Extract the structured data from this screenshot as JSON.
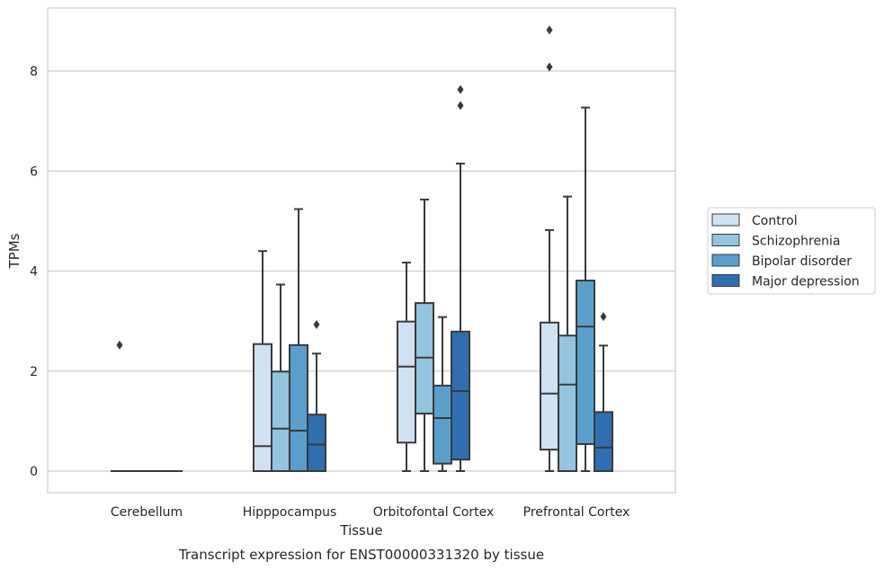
{
  "caption": "Transcript expression for ENST00000331320 by tissue",
  "chart_data": {
    "type": "box",
    "title": "",
    "xlabel": "Tissue",
    "ylabel": "TPMs",
    "ylim": [
      -0.42,
      9.25
    ],
    "yticks": [
      0,
      2,
      4,
      6,
      8
    ],
    "grid": "horizontal",
    "legend_position": "right",
    "categories": [
      "Cerebellum",
      "Hipppocampus",
      "Orbitofontal Cortex",
      "Prefrontal Cortex"
    ],
    "series": [
      {
        "name": "Control",
        "color": "#d0e1f2",
        "boxes": [
          {
            "category": "Cerebellum",
            "whisker_low": 0,
            "q1": 0,
            "median": 0,
            "q3": 0,
            "whisker_high": 0,
            "outliers": [
              2.52
            ]
          },
          {
            "category": "Hipppocampus",
            "whisker_low": 0,
            "q1": 0,
            "median": 0.5,
            "q3": 2.54,
            "whisker_high": 4.4,
            "outliers": []
          },
          {
            "category": "Orbitofontal Cortex",
            "whisker_low": 0,
            "q1": 0.57,
            "median": 2.09,
            "q3": 2.99,
            "whisker_high": 4.17,
            "outliers": []
          },
          {
            "category": "Prefrontal Cortex",
            "whisker_low": 0,
            "q1": 0.43,
            "median": 1.55,
            "q3": 2.97,
            "whisker_high": 4.82,
            "outliers": [
              8.08,
              8.82
            ]
          }
        ]
      },
      {
        "name": "Schizophrenia",
        "color": "#94c4df",
        "boxes": [
          {
            "category": "Cerebellum",
            "whisker_low": 0,
            "q1": 0,
            "median": 0,
            "q3": 0,
            "whisker_high": 0,
            "outliers": []
          },
          {
            "category": "Hipppocampus",
            "whisker_low": 0,
            "q1": 0,
            "median": 0.85,
            "q3": 1.99,
            "whisker_high": 3.73,
            "outliers": []
          },
          {
            "category": "Orbitofontal Cortex",
            "whisker_low": 0,
            "q1": 1.15,
            "median": 2.27,
            "q3": 3.36,
            "whisker_high": 5.43,
            "outliers": []
          },
          {
            "category": "Prefrontal Cortex",
            "whisker_low": 0,
            "q1": 0,
            "median": 1.73,
            "q3": 2.71,
            "whisker_high": 5.49,
            "outliers": []
          }
        ]
      },
      {
        "name": "Bipolar disorder",
        "color": "#5a9fcc",
        "boxes": [
          {
            "category": "Cerebellum",
            "whisker_low": 0,
            "q1": 0,
            "median": 0,
            "q3": 0,
            "whisker_high": 0,
            "outliers": []
          },
          {
            "category": "Hipppocampus",
            "whisker_low": 0,
            "q1": 0,
            "median": 0.81,
            "q3": 2.52,
            "whisker_high": 5.24,
            "outliers": []
          },
          {
            "category": "Orbitofontal Cortex",
            "whisker_low": 0,
            "q1": 0.15,
            "median": 1.06,
            "q3": 1.71,
            "whisker_high": 3.08,
            "outliers": []
          },
          {
            "category": "Prefrontal Cortex",
            "whisker_low": 0,
            "q1": 0.54,
            "median": 2.89,
            "q3": 3.81,
            "whisker_high": 7.27,
            "outliers": []
          }
        ]
      },
      {
        "name": "Major depression",
        "color": "#2f6faf",
        "boxes": [
          {
            "category": "Cerebellum",
            "whisker_low": 0,
            "q1": 0,
            "median": 0,
            "q3": 0,
            "whisker_high": 0,
            "outliers": []
          },
          {
            "category": "Hipppocampus",
            "whisker_low": 0,
            "q1": 0,
            "median": 0.53,
            "q3": 1.13,
            "whisker_high": 2.35,
            "outliers": [
              2.93
            ]
          },
          {
            "category": "Orbitofontal Cortex",
            "whisker_low": 0,
            "q1": 0.23,
            "median": 1.6,
            "q3": 2.79,
            "whisker_high": 6.15,
            "outliers": [
              7.31,
              7.63
            ]
          },
          {
            "category": "Prefrontal Cortex",
            "whisker_low": 0,
            "q1": 0,
            "median": 0.47,
            "q3": 1.18,
            "whisker_high": 2.51,
            "outliers": [
              3.09
            ]
          }
        ]
      }
    ]
  }
}
